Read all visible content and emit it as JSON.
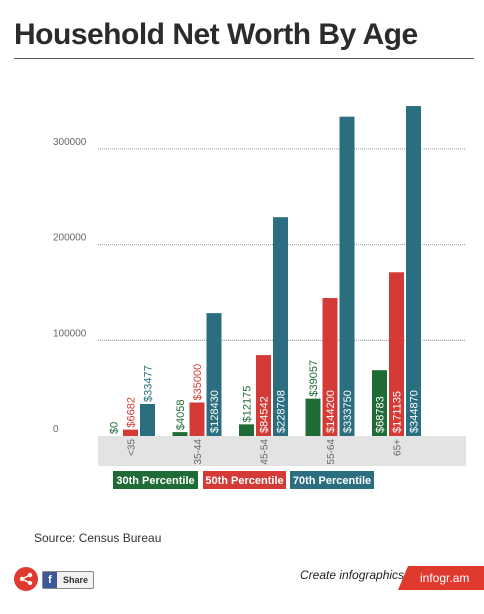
{
  "page": {
    "title": "Household Net Worth By Age",
    "source": "Source: Census Bureau",
    "share_label": "Share",
    "fb_glyph": "f",
    "create_text": "Create infographics",
    "brand_text": "infogr.am"
  },
  "chart_data": {
    "type": "bar",
    "title": "",
    "xlabel": "",
    "ylabel": "",
    "categories": [
      "<35",
      "35-44",
      "45-54",
      "55-64",
      "65+"
    ],
    "series": [
      {
        "name": "30th Percentile",
        "color": "#1e6b35",
        "values": [
          0,
          4058,
          12175,
          39057,
          68783
        ],
        "labels": [
          "$0",
          "$4058",
          "$12175",
          "$39057",
          "$68783"
        ]
      },
      {
        "name": "50th Percentile",
        "color": "#d43b36",
        "values": [
          6682,
          35000,
          84542,
          144200,
          171135
        ],
        "labels": [
          "$6682",
          "$35000",
          "$84542",
          "$144200",
          "$171135"
        ]
      },
      {
        "name": "70th Percentile",
        "color": "#2b6e80",
        "values": [
          33477,
          128430,
          228708,
          333750,
          344870
        ],
        "labels": [
          "$33477",
          "$128430",
          "$228708",
          "$333750",
          "$344870"
        ]
      }
    ],
    "yticks": [
      0,
      100000,
      200000,
      300000
    ],
    "ytick_labels": [
      "0",
      "100000",
      "200000",
      "300000"
    ],
    "ylim": [
      0,
      370000
    ],
    "grid": true,
    "legend_position": "bottom",
    "label_colors": {
      "dark": "#1e6b35",
      "red": "#d43b36",
      "teal": "#2b6e80",
      "on_bar": "#ffffff"
    },
    "tick_color": "#666666",
    "grid_color": "#999999",
    "band_color": "#e3e3e3"
  }
}
